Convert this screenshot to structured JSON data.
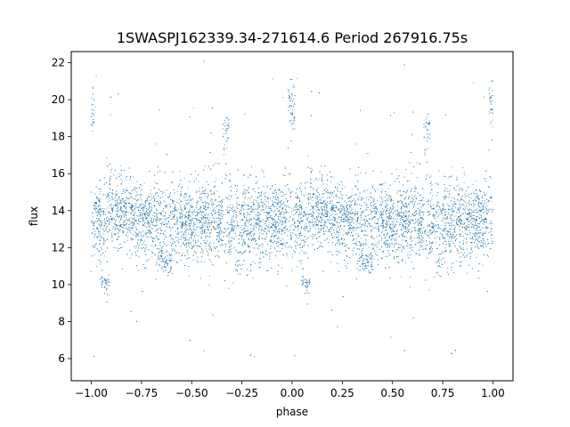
{
  "chart_data": {
    "type": "scatter",
    "title": "1SWASPJ162339.34-271614.6 Period 267916.75s",
    "xlabel": "phase",
    "ylabel": "flux",
    "xlim": [
      -1.1,
      1.1
    ],
    "ylim": [
      4.8,
      22.6
    ],
    "xticks": [
      -1.0,
      -0.75,
      -0.5,
      -0.25,
      0.0,
      0.25,
      0.5,
      0.75,
      1.0
    ],
    "xtick_labels": [
      "−1.00",
      "−0.75",
      "−0.50",
      "−0.25",
      "0.00",
      "0.25",
      "0.50",
      "0.75",
      "1.00"
    ],
    "yticks": [
      6,
      8,
      10,
      12,
      14,
      16,
      18,
      20,
      22
    ],
    "ytick_labels": [
      "6",
      "8",
      "10",
      "12",
      "14",
      "16",
      "18",
      "20",
      "22"
    ],
    "grid": false,
    "legend": false,
    "marker_color": "#1f77b4",
    "series": [
      {
        "points_sample": [
          [
            -0.99,
            13.2
          ],
          [
            -0.98,
            19.6
          ],
          [
            -0.95,
            11.6
          ],
          [
            -0.93,
            10.1
          ],
          [
            -0.9,
            13.5
          ],
          [
            -0.85,
            14.4
          ],
          [
            -0.8,
            14.9
          ],
          [
            -0.75,
            13.8
          ],
          [
            -0.68,
            17.6
          ],
          [
            -0.66,
            11.3
          ],
          [
            -0.6,
            12.1
          ],
          [
            -0.55,
            14.1
          ],
          [
            -0.5,
            12.5
          ],
          [
            -0.45,
            13.9
          ],
          [
            -0.33,
            18.4
          ],
          [
            -0.3,
            14.8
          ],
          [
            -0.27,
            11.0
          ],
          [
            -0.25,
            13.2
          ],
          [
            -0.2,
            14.2
          ],
          [
            -0.15,
            12.2
          ],
          [
            -0.1,
            13.6
          ],
          [
            -0.03,
            14.9
          ],
          [
            0.0,
            20.2
          ],
          [
            0.01,
            13.2
          ],
          [
            0.05,
            12.0
          ],
          [
            0.07,
            10.1
          ],
          [
            0.1,
            13.5
          ],
          [
            0.15,
            14.4
          ],
          [
            0.2,
            14.9
          ],
          [
            0.25,
            13.8
          ],
          [
            0.32,
            17.6
          ],
          [
            0.34,
            11.3
          ],
          [
            0.4,
            12.1
          ],
          [
            0.45,
            14.1
          ],
          [
            0.5,
            12.5
          ],
          [
            0.55,
            13.9
          ],
          [
            0.67,
            18.4
          ],
          [
            0.7,
            14.8
          ],
          [
            0.73,
            11.0
          ],
          [
            0.75,
            13.2
          ],
          [
            0.8,
            14.2
          ],
          [
            0.85,
            12.2
          ],
          [
            0.9,
            13.6
          ],
          [
            0.97,
            14.9
          ],
          [
            0.99,
            20.2
          ]
        ]
      }
    ]
  }
}
